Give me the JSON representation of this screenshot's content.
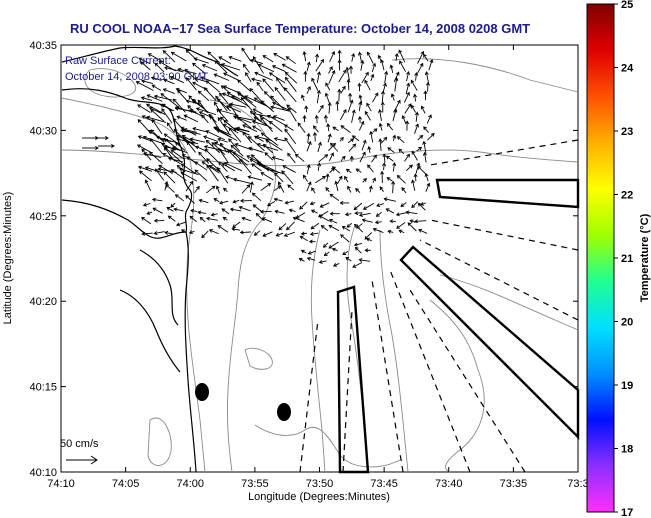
{
  "figure": {
    "title": "RU COOL  NOAA−17  Sea Surface Temperature:  October 14, 2008 0208 GMT",
    "xlabel": "Longitude (Degrees:Minutes)",
    "ylabel": "Latitude (Degrees:Minutes)",
    "x_ticks": [
      "74:10",
      "74:05",
      "74:00",
      "73:55",
      "73:50",
      "73:45",
      "73:40",
      "73:35",
      "73:3"
    ],
    "y_ticks": [
      "40:35",
      "40:30",
      "40:25",
      "40:20",
      "40:15",
      "40:10"
    ],
    "annotation_line1": "Raw Surface Current:",
    "annotation_line2": "October 14, 2008 03:00 GMT",
    "scale_label": "50 cm/s"
  },
  "colorbar": {
    "label": "Temperature (°C)",
    "ticks": [
      "25",
      "24",
      "23",
      "22",
      "21",
      "20",
      "19",
      "18",
      "17"
    ],
    "colors": [
      "#ff2fff",
      "#8c2fff",
      "#0010ff",
      "#0090ff",
      "#00e0ff",
      "#20ff90",
      "#a0ff00",
      "#ffff00",
      "#ffb000",
      "#ff5000",
      "#e00000",
      "#800000"
    ]
  }
}
